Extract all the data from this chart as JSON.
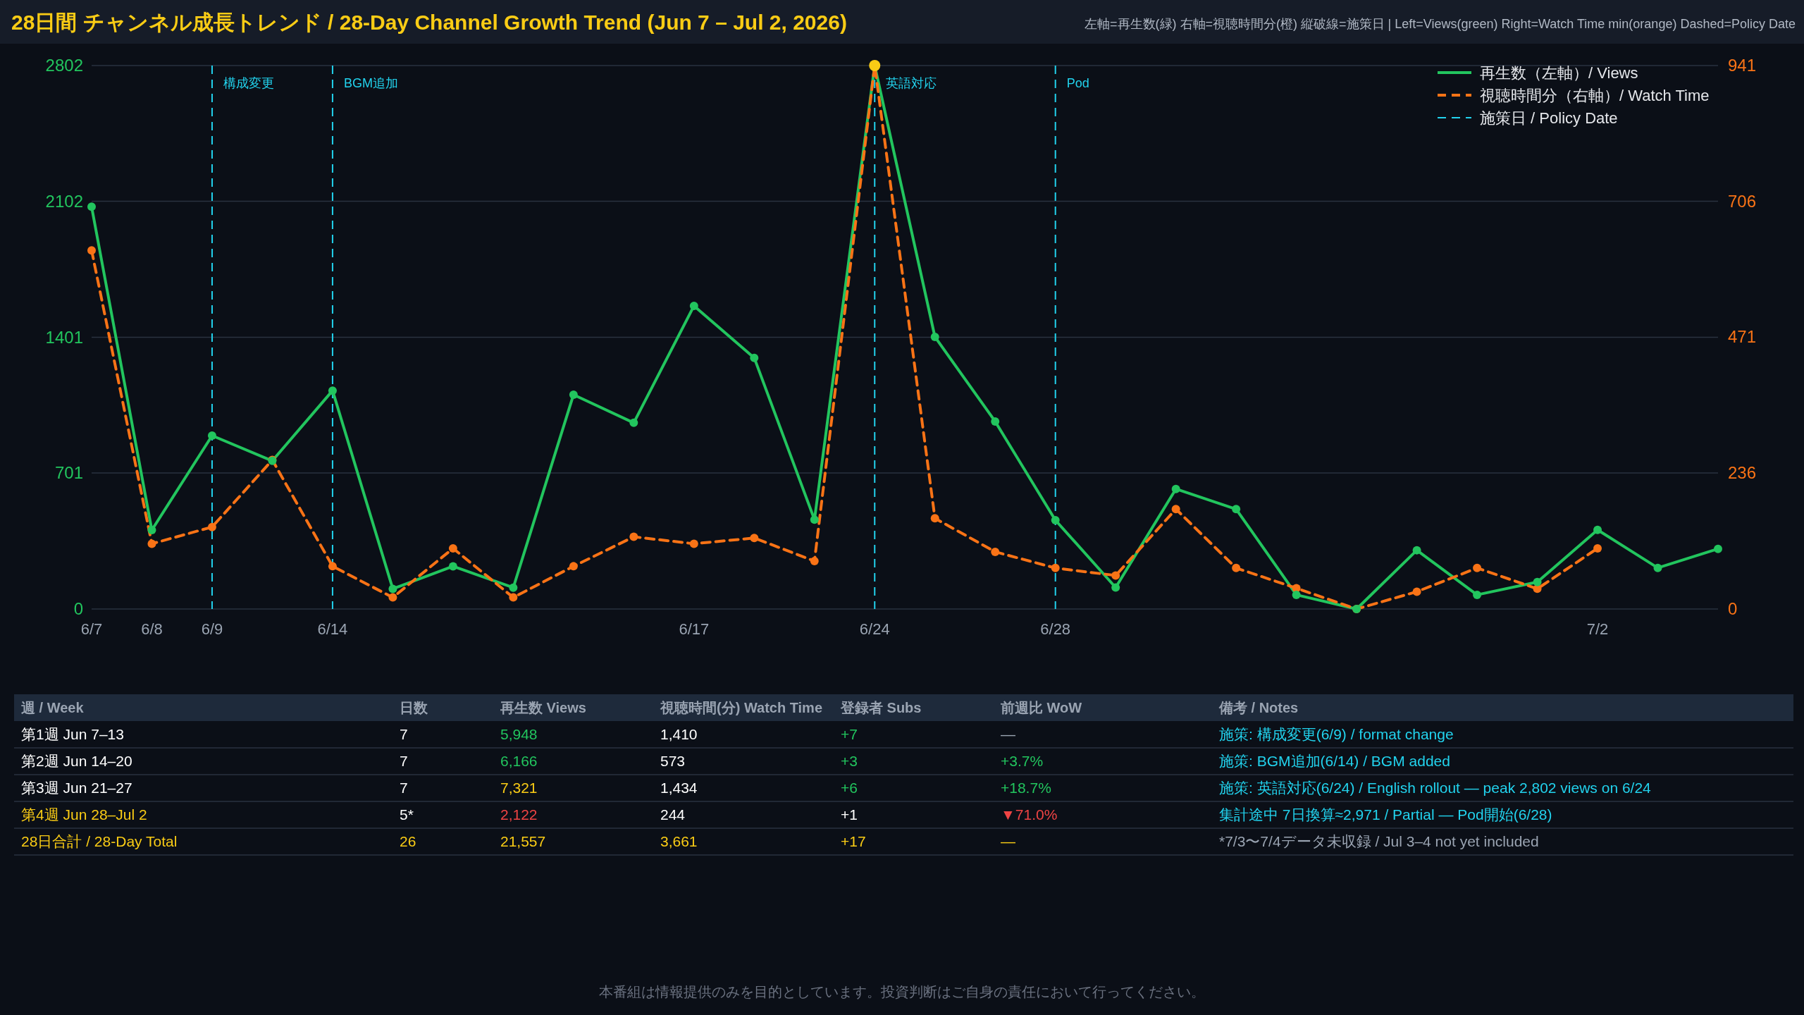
{
  "chart_data": [
    {
      "type": "line",
      "title": "28日間 チャンネル成長トレンド / 28-Day Channel Growth Trend (Jun 7 – Jul 2, 2026)",
      "subtitle": "左軸=再生数(緑) 右軸=視聴時間分(橙) 縦破線=施策日 | Left=Views(green) Right=Watch Time min(orange) Dashed=Policy Date",
      "categories": [
        "6/7",
        "6/8",
        "6/9",
        null,
        "6/14",
        null,
        null,
        null,
        null,
        null,
        "6/17",
        null,
        null,
        "6/24",
        null,
        null,
        "6/28",
        null,
        null,
        null,
        null,
        null,
        null,
        null,
        null,
        "7/2",
        null,
        null
      ],
      "series": [
        {
          "name": "再生数（左軸）/ Views",
          "color": "#22c55e",
          "line_style": "solid",
          "marker": "circle",
          "values": [
            2074,
            407,
            894,
            764,
            1126,
            104,
            220,
            110,
            1105,
            960,
            1563,
            1295,
            461,
            2802,
            1403,
            967,
            458,
            111,
            619,
            515,
            73,
            0,
            303,
            73,
            139,
            408,
            212,
            310
          ],
          "colors": [
            "#22c55e",
            "#22c55e",
            "#22c55e",
            "#22c55e",
            "#22c55e",
            "#22c55e",
            "#22c55e",
            "#22c55e",
            "#22c55e",
            "#22c55e",
            "#22c55e",
            "#22c55e",
            "#22c55e",
            "#facc15",
            "#22c55e",
            "#22c55e",
            "#22c55e",
            "#22c55e",
            "#22c55e",
            "#22c55e",
            "#22c55e",
            "#22c55e",
            "#22c55e",
            "#22c55e",
            "#22c55e",
            "#22c55e",
            "#22c55e",
            "#22c55e"
          ]
        },
        {
          "name": "視聴時間分（右軸）/ Watch Time",
          "color": "#f97316",
          "axis": "y2",
          "line_style": "dashed",
          "marker": "circle",
          "values": [
            621,
            113,
            142,
            258,
            74,
            20,
            105,
            20,
            74,
            125,
            113,
            123,
            83,
            941,
            157,
            99,
            71,
            58,
            173,
            71,
            36,
            0,
            30,
            71,
            35,
            105,
            null,
            null
          ]
        }
      ],
      "ylim": [
        0,
        2802
      ],
      "yticks": [
        0,
        701,
        1401,
        2102,
        2802
      ],
      "y2lim": [
        0,
        941
      ],
      "y2ticks": [
        0,
        236,
        471,
        706,
        941
      ],
      "grid": "y",
      "legend": "top right",
      "ref_lines": [
        {
          "axis": "x",
          "value": "6/9",
          "label": "構成変更",
          "color": "#22d3ee",
          "line_style": "dashed"
        },
        {
          "axis": "x",
          "value": "6/14",
          "label": "BGM追加",
          "color": "#22d3ee",
          "line_style": "dashed"
        },
        {
          "axis": "x",
          "value": "6/24",
          "label": "英語対応",
          "color": "#22d3ee",
          "line_style": "dashed"
        },
        {
          "axis": "x",
          "value": "6/28",
          "label": "Pod",
          "color": "#22d3ee",
          "line_style": "dashed"
        }
      ],
      "annotations": [
        "施策日 / Policy Date"
      ]
    },
    {
      "type": "other",
      "categories": [
        "週 / Week",
        "日数",
        "再生数 Views",
        "視聴時間(分) Watch Time",
        "登録者 Subs",
        "前週比 WoW",
        "備考 / Notes"
      ],
      "cell_labels": [
        [
          "第1週 Jun 7–13",
          "7",
          "5,948",
          "1,410",
          "+7",
          "—",
          "施策: 構成変更(6/9) / format change"
        ],
        [
          "第2週 Jun 14–20",
          "7",
          "6,166",
          "573",
          "+3",
          "+3.7%",
          "施策: BGM追加(6/14) / BGM added"
        ],
        [
          "第3週 Jun 21–27",
          "7",
          "7,321",
          "1,434",
          "+6",
          "+18.7%",
          "施策: 英語対応(6/24) / English rollout — peak 2,802 views on 6/24"
        ],
        [
          "第4週 Jun 28–Jul 2",
          "5*",
          "2,122",
          "244",
          "+1",
          "▼71.0%",
          "集計途中 7日換算≈2,971 / Partial — Pod開始(6/28)"
        ],
        [
          "28日合計 / 28-Day Total",
          "26",
          "21,557",
          "3,661",
          "+17",
          "—",
          "*7/3〜7/4データ未収録 / Jul 3–4 not yet included"
        ]
      ],
      "colors": [
        [
          "#ffffff",
          "#ffffff",
          "#22c55e",
          "#ffffff",
          "#22c55e",
          "#9aa4b2",
          "#22d3ee"
        ],
        [
          "#ffffff",
          "#ffffff",
          "#22c55e",
          "#ffffff",
          "#22c55e",
          "#22c55e",
          "#22d3ee"
        ],
        [
          "#ffffff",
          "#ffffff",
          "#facc15",
          "#ffffff",
          "#22c55e",
          "#22c55e",
          "#22d3ee"
        ],
        [
          "#facc15",
          "#ffffff",
          "#ef4444",
          "#ffffff",
          "#ffffff",
          "#ef4444",
          "#22d3ee"
        ],
        [
          "#facc15",
          "#facc15",
          "#facc15",
          "#facc15",
          "#facc15",
          "#facc15",
          "#9aa4b2"
        ]
      ],
      "annotations": [
        "本番組は情報提供のみを目的としています。投資判断はご自身の責任において行ってください。"
      ]
    }
  ]
}
